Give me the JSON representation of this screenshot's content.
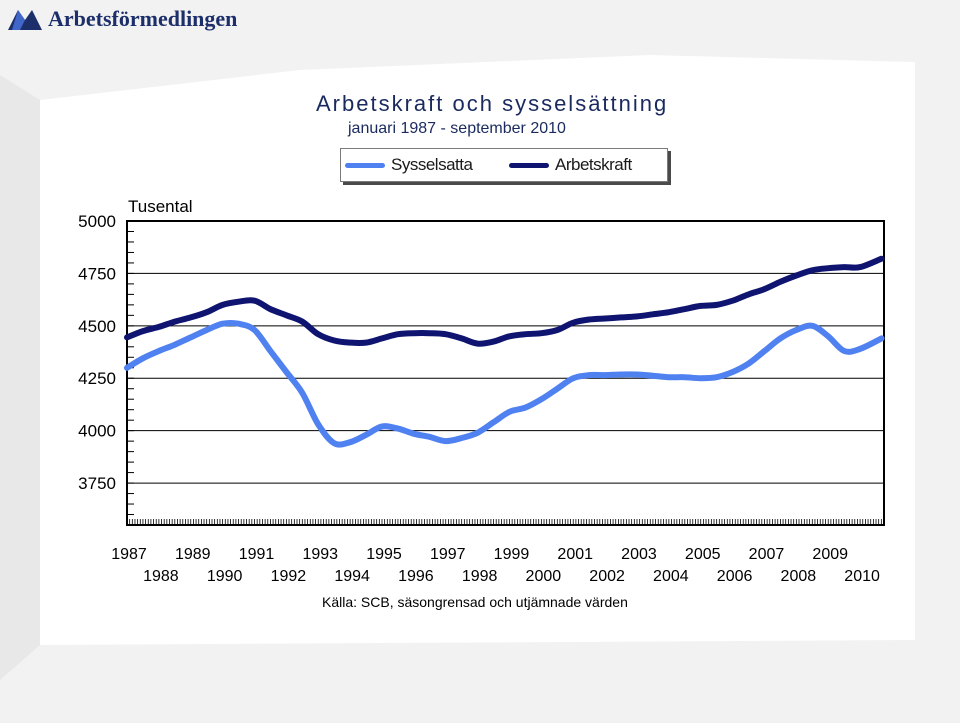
{
  "brand": {
    "name": "Arbetsförmedlingen",
    "color": "#1d2f6b"
  },
  "chart_data": {
    "type": "line",
    "title": "Arbetskraft och sysselsättning",
    "subtitle": "januari 1987 - september 2010",
    "ylabel": "Tusental",
    "source": "Källa: SCB, säsongrensad och utjämnade värden",
    "ylim": [
      3550,
      5000
    ],
    "yticks": [
      3750,
      4000,
      4250,
      4500,
      4750,
      5000
    ],
    "xlim": [
      1987,
      2010.75
    ],
    "xticks_upper": [
      "1987",
      "1989",
      "1991",
      "1993",
      "1995",
      "1997",
      "1999",
      "2001",
      "2003",
      "2005",
      "2007",
      "2009"
    ],
    "xticks_lower": [
      "1988",
      "1990",
      "1992",
      "1994",
      "1996",
      "1998",
      "2000",
      "2002",
      "2004",
      "2006",
      "2008",
      "2010"
    ],
    "legend_position": "top-center",
    "grid": true,
    "series": [
      {
        "name": "Sysselsatta",
        "color": "#4f81f0",
        "x": [
          1987.0,
          1987.5,
          1988.0,
          1988.5,
          1989.0,
          1989.5,
          1990.0,
          1990.5,
          1991.0,
          1991.5,
          1992.0,
          1992.5,
          1993.0,
          1993.5,
          1994.0,
          1994.5,
          1995.0,
          1995.5,
          1996.0,
          1996.5,
          1997.0,
          1997.5,
          1998.0,
          1998.5,
          1999.0,
          1999.5,
          2000.0,
          2000.5,
          2001.0,
          2001.5,
          2002.0,
          2002.5,
          2003.0,
          2003.5,
          2004.0,
          2004.5,
          2005.0,
          2005.5,
          2006.0,
          2006.5,
          2007.0,
          2007.5,
          2008.0,
          2008.5,
          2009.0,
          2009.5,
          2010.0,
          2010.67
        ],
        "values": [
          4300,
          4345,
          4380,
          4410,
          4445,
          4480,
          4510,
          4510,
          4480,
          4380,
          4280,
          4180,
          4030,
          3940,
          3945,
          3980,
          4020,
          4010,
          3985,
          3970,
          3950,
          3965,
          3990,
          4040,
          4090,
          4110,
          4150,
          4200,
          4250,
          4265,
          4265,
          4268,
          4268,
          4262,
          4255,
          4255,
          4250,
          4255,
          4280,
          4320,
          4380,
          4440,
          4480,
          4500,
          4450,
          4380,
          4390,
          4440
        ]
      },
      {
        "name": "Arbetskraft",
        "color": "#0e1470",
        "x": [
          1987.0,
          1987.5,
          1988.0,
          1988.5,
          1989.0,
          1989.5,
          1990.0,
          1990.5,
          1991.0,
          1991.5,
          1992.0,
          1992.5,
          1993.0,
          1993.5,
          1994.0,
          1994.5,
          1995.0,
          1995.5,
          1996.0,
          1996.5,
          1997.0,
          1997.5,
          1998.0,
          1998.5,
          1999.0,
          1999.5,
          2000.0,
          2000.5,
          2001.0,
          2001.5,
          2002.0,
          2002.5,
          2003.0,
          2003.5,
          2004.0,
          2004.5,
          2005.0,
          2005.5,
          2006.0,
          2006.5,
          2007.0,
          2007.5,
          2008.0,
          2008.5,
          2009.0,
          2009.5,
          2010.0,
          2010.67
        ],
        "values": [
          4445,
          4475,
          4495,
          4520,
          4540,
          4565,
          4600,
          4615,
          4620,
          4580,
          4550,
          4520,
          4460,
          4430,
          4420,
          4420,
          4440,
          4460,
          4465,
          4465,
          4460,
          4440,
          4415,
          4425,
          4450,
          4460,
          4465,
          4480,
          4515,
          4530,
          4535,
          4540,
          4545,
          4555,
          4565,
          4580,
          4595,
          4600,
          4620,
          4650,
          4675,
          4710,
          4740,
          4765,
          4775,
          4780,
          4780,
          4820
        ]
      }
    ]
  }
}
